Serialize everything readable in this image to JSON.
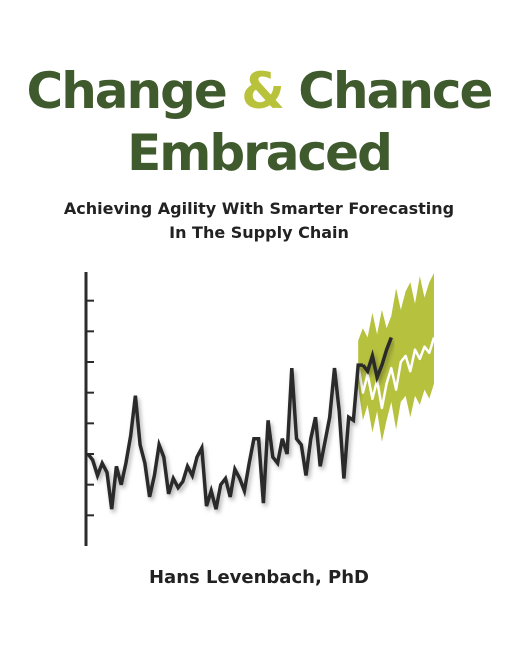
{
  "title": {
    "word_1": "Change",
    "ampersand": "&",
    "word_2": "Chance",
    "line_2": "Embraced"
  },
  "subtitle": {
    "line_1": "Achieving Agility With Smarter Forecasting",
    "line_2": "In The Supply Chain"
  },
  "author": "Hans Levenbach, PhD",
  "colors": {
    "title_green": "#3f5a2c",
    "ampersand_green": "#b8c23a",
    "band_green": "#b6c13e",
    "series_dark": "#2b2b2b"
  },
  "chart_data": {
    "type": "line",
    "title": "",
    "xlabel": "",
    "ylabel": "",
    "grid": false,
    "ylim": [
      0,
      9
    ],
    "yticks": [
      1,
      2,
      3,
      4,
      5,
      6,
      7,
      8
    ],
    "history": {
      "x": [
        0,
        1,
        2,
        3,
        4,
        5,
        6,
        7,
        8,
        9,
        10,
        11,
        12,
        13,
        14,
        15,
        16,
        17,
        18,
        19,
        20,
        21,
        22,
        23,
        24,
        25,
        26,
        27,
        28,
        29,
        30,
        31,
        32,
        33,
        34,
        35,
        36,
        37,
        38,
        39,
        40,
        41,
        42,
        43,
        44,
        45,
        46,
        47,
        48,
        49,
        50,
        51,
        52,
        53,
        54,
        55,
        56,
        57,
        58,
        59,
        60,
        61,
        62,
        63,
        64,
        65,
        66,
        67,
        68,
        69,
        70,
        71,
        72,
        73
      ],
      "values": [
        3.0,
        2.8,
        2.3,
        2.7,
        2.4,
        1.2,
        2.6,
        2.0,
        2.7,
        3.6,
        4.9,
        3.3,
        2.7,
        1.6,
        2.3,
        3.3,
        2.9,
        1.7,
        2.2,
        1.9,
        2.1,
        2.6,
        2.3,
        2.9,
        3.2,
        1.3,
        1.8,
        1.2,
        2.0,
        2.2,
        1.6,
        2.5,
        2.2,
        1.8,
        2.7,
        3.5,
        3.5,
        1.4,
        4.1,
        2.9,
        2.7,
        3.5,
        3.0,
        5.8,
        3.5,
        3.3,
        2.3,
        3.5,
        4.2,
        2.6,
        3.4,
        4.2,
        5.8,
        4.4,
        2.2,
        4.2,
        4.1,
        5.9,
        5.9,
        6.6,
        5.8,
        6.5,
        5.1,
        6.9,
        6.3,
        5.7,
        6.7,
        7.3,
        7.0,
        6.3,
        6.3,
        7.3,
        6.5,
        5.8
      ]
    },
    "actual_extension": {
      "x": [
        58,
        59,
        60,
        61,
        62,
        63,
        64
      ],
      "values": [
        5.9,
        5.7,
        6.2,
        5.5,
        5.9,
        6.4,
        6.8
      ]
    },
    "forecast": {
      "x": [
        57,
        58,
        59,
        60,
        61,
        62,
        63,
        64,
        65,
        66,
        67,
        68,
        69,
        70,
        71,
        72,
        73
      ],
      "values": [
        5.9,
        5.0,
        5.6,
        4.8,
        5.4,
        4.5,
        5.3,
        5.8,
        5.1,
        6.0,
        6.2,
        5.7,
        6.4,
        6.1,
        6.5,
        6.3,
        6.8
      ],
      "upper": [
        6.7,
        7.1,
        6.8,
        7.6,
        6.9,
        7.7,
        7.1,
        7.5,
        8.4,
        7.7,
        8.3,
        8.6,
        7.9,
        8.8,
        8.1,
        8.6,
        8.9
      ],
      "lower": [
        5.2,
        4.1,
        4.6,
        3.7,
        4.4,
        3.4,
        4.1,
        4.7,
        3.8,
        4.7,
        4.9,
        4.2,
        4.9,
        4.6,
        5.1,
        4.8,
        5.3
      ]
    }
  }
}
